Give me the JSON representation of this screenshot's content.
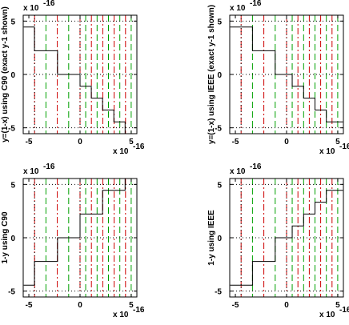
{
  "colors": {
    "background": "#ffffff",
    "axes": "#000000",
    "step_line": "#000000",
    "boundary_dotted": "#000000",
    "guide_red_dashdot": "#cc0000",
    "guide_green_dashed": "#00a000"
  },
  "chart_data": [
    {
      "type": "line",
      "ylabel": "y=(1-x) using C90 (exact y-1 shown)",
      "xlabel": "",
      "x_exponent_label": "x 10",
      "x_exponent": "-16",
      "y_exponent_label": "x 10",
      "y_exponent": "-16",
      "xlim": [
        -5.55e-16,
        5.55e-16
      ],
      "ylim": [
        -5.55e-16,
        5.55e-16
      ],
      "xticks": [
        -5,
        0,
        5
      ],
      "yticks": [
        -5,
        0,
        5
      ],
      "grid": false,
      "reference_lines": {
        "dotted_x": [
          -4.44e-16,
          0
        ],
        "dotted_y": [
          -4.995e-16,
          0,
          4.995e-16
        ],
        "red_dashdot_x": [
          -4.44e-16,
          -2.22e-16,
          0,
          1.11e-16,
          2.22e-16,
          3.33e-16,
          4.44e-16
        ],
        "green_dashed_x": [
          -3.33e-16,
          -1.11e-16,
          5.5e-17,
          1.665e-16,
          2.775e-16,
          3.885e-16,
          4.995e-16
        ]
      },
      "series": [
        {
          "x": [
            -5.5e-16,
            -4.45e-16,
            -4.45e-16,
            -2.2e-16,
            -2.2e-16,
            0,
            0,
            1.1e-16,
            1.1e-16,
            2.2e-16,
            2.2e-16,
            3.3e-16,
            3.3e-16,
            4.4e-16,
            4.4e-16,
            5.5e-16
          ],
          "y": [
            4.44e-16,
            4.44e-16,
            2.22e-16,
            2.22e-16,
            0,
            0,
            -1.11e-16,
            -1.11e-16,
            -2.22e-16,
            -2.22e-16,
            -3.33e-16,
            -3.33e-16,
            -4.44e-16,
            -4.44e-16,
            -5.55e-16,
            -5.55e-16
          ]
        }
      ]
    },
    {
      "type": "line",
      "ylabel": "y=(1-x) using IEEE (exact y-1 shown)",
      "xlabel": "",
      "x_exponent_label": "x 10",
      "x_exponent": "-16",
      "y_exponent_label": "x 10",
      "y_exponent": "-16",
      "xlim": [
        -5.55e-16,
        5.55e-16
      ],
      "ylim": [
        -5.55e-16,
        5.55e-16
      ],
      "xticks": [
        -5,
        0,
        5
      ],
      "yticks": [
        -5,
        0,
        5
      ],
      "grid": false,
      "reference_lines": {
        "dotted_x": [
          -4.44e-16,
          0
        ],
        "dotted_y": [
          -4.995e-16,
          0,
          4.995e-16
        ],
        "red_dashdot_x": [
          -4.44e-16,
          -2.22e-16,
          0,
          1.11e-16,
          2.22e-16,
          3.33e-16,
          4.44e-16
        ],
        "green_dashed_x": [
          -3.33e-16,
          -1.11e-16,
          5.5e-17,
          1.665e-16,
          2.775e-16,
          3.885e-16,
          4.995e-16
        ]
      },
      "series": [
        {
          "x": [
            -5.5e-16,
            -3.33e-16,
            -3.33e-16,
            -1.11e-16,
            -1.11e-16,
            5.5e-17,
            5.5e-17,
            1.665e-16,
            1.665e-16,
            2.775e-16,
            2.775e-16,
            3.885e-16,
            3.885e-16,
            5.5e-16
          ],
          "y": [
            4.44e-16,
            4.44e-16,
            2.22e-16,
            2.22e-16,
            0,
            0,
            -1.11e-16,
            -1.11e-16,
            -2.22e-16,
            -2.22e-16,
            -3.33e-16,
            -3.33e-16,
            -4.44e-16,
            -4.44e-16
          ]
        }
      ]
    },
    {
      "type": "line",
      "ylabel": "1-y using C90",
      "xlabel": "",
      "x_exponent_label": "x 10",
      "x_exponent": "-16",
      "y_exponent_label": "x 10",
      "y_exponent": "-16",
      "xlim": [
        -5.55e-16,
        5.55e-16
      ],
      "ylim": [
        -5.55e-16,
        5.55e-16
      ],
      "xticks": [
        -5,
        0,
        5
      ],
      "yticks": [
        -5,
        0,
        5
      ],
      "grid": false,
      "reference_lines": {
        "dotted_x": [
          -4.44e-16,
          0
        ],
        "dotted_y": [
          -4.995e-16,
          0,
          4.995e-16
        ],
        "red_dashdot_x": [
          -4.44e-16,
          -2.22e-16,
          0,
          1.11e-16,
          2.22e-16,
          3.33e-16,
          4.44e-16
        ],
        "green_dashed_x": [
          -3.33e-16,
          -1.11e-16,
          5.5e-17,
          1.665e-16,
          2.775e-16,
          3.885e-16,
          4.995e-16
        ]
      },
      "series": [
        {
          "x": [
            -5.5e-16,
            -4.45e-16,
            -4.45e-16,
            -2.2e-16,
            -2.2e-16,
            0,
            0,
            2.2e-16,
            2.2e-16,
            4.4e-16,
            4.4e-16,
            5.5e-16
          ],
          "y": [
            -4.44e-16,
            -4.44e-16,
            -2.22e-16,
            -2.22e-16,
            0,
            0,
            2.22e-16,
            2.22e-16,
            4.44e-16,
            4.44e-16,
            5.55e-16,
            5.55e-16
          ]
        }
      ]
    },
    {
      "type": "line",
      "ylabel": "1-y using IEEE",
      "xlabel": "",
      "x_exponent_label": "x 10",
      "x_exponent": "-16",
      "y_exponent_label": "x 10",
      "y_exponent": "-16",
      "xlim": [
        -5.55e-16,
        5.55e-16
      ],
      "ylim": [
        -5.55e-16,
        5.55e-16
      ],
      "xticks": [
        -5,
        0,
        5
      ],
      "yticks": [
        -5,
        0,
        5
      ],
      "grid": false,
      "reference_lines": {
        "dotted_x": [
          -4.44e-16,
          0
        ],
        "dotted_y": [
          -4.995e-16,
          0,
          4.995e-16
        ],
        "red_dashdot_x": [
          -4.44e-16,
          -2.22e-16,
          0,
          1.11e-16,
          2.22e-16,
          3.33e-16,
          4.44e-16
        ],
        "green_dashed_x": [
          -3.33e-16,
          -1.11e-16,
          5.5e-17,
          1.665e-16,
          2.775e-16,
          3.885e-16,
          4.995e-16
        ]
      },
      "series": [
        {
          "x": [
            -5.5e-16,
            -3.33e-16,
            -3.33e-16,
            -1.11e-16,
            -1.11e-16,
            5.5e-17,
            5.5e-17,
            1.665e-16,
            1.665e-16,
            2.775e-16,
            2.775e-16,
            3.885e-16,
            3.885e-16,
            5.5e-16
          ],
          "y": [
            -4.44e-16,
            -4.44e-16,
            -2.22e-16,
            -2.22e-16,
            0,
            0,
            1.11e-16,
            1.11e-16,
            2.22e-16,
            2.22e-16,
            3.33e-16,
            3.33e-16,
            4.44e-16,
            4.44e-16
          ]
        }
      ]
    }
  ]
}
